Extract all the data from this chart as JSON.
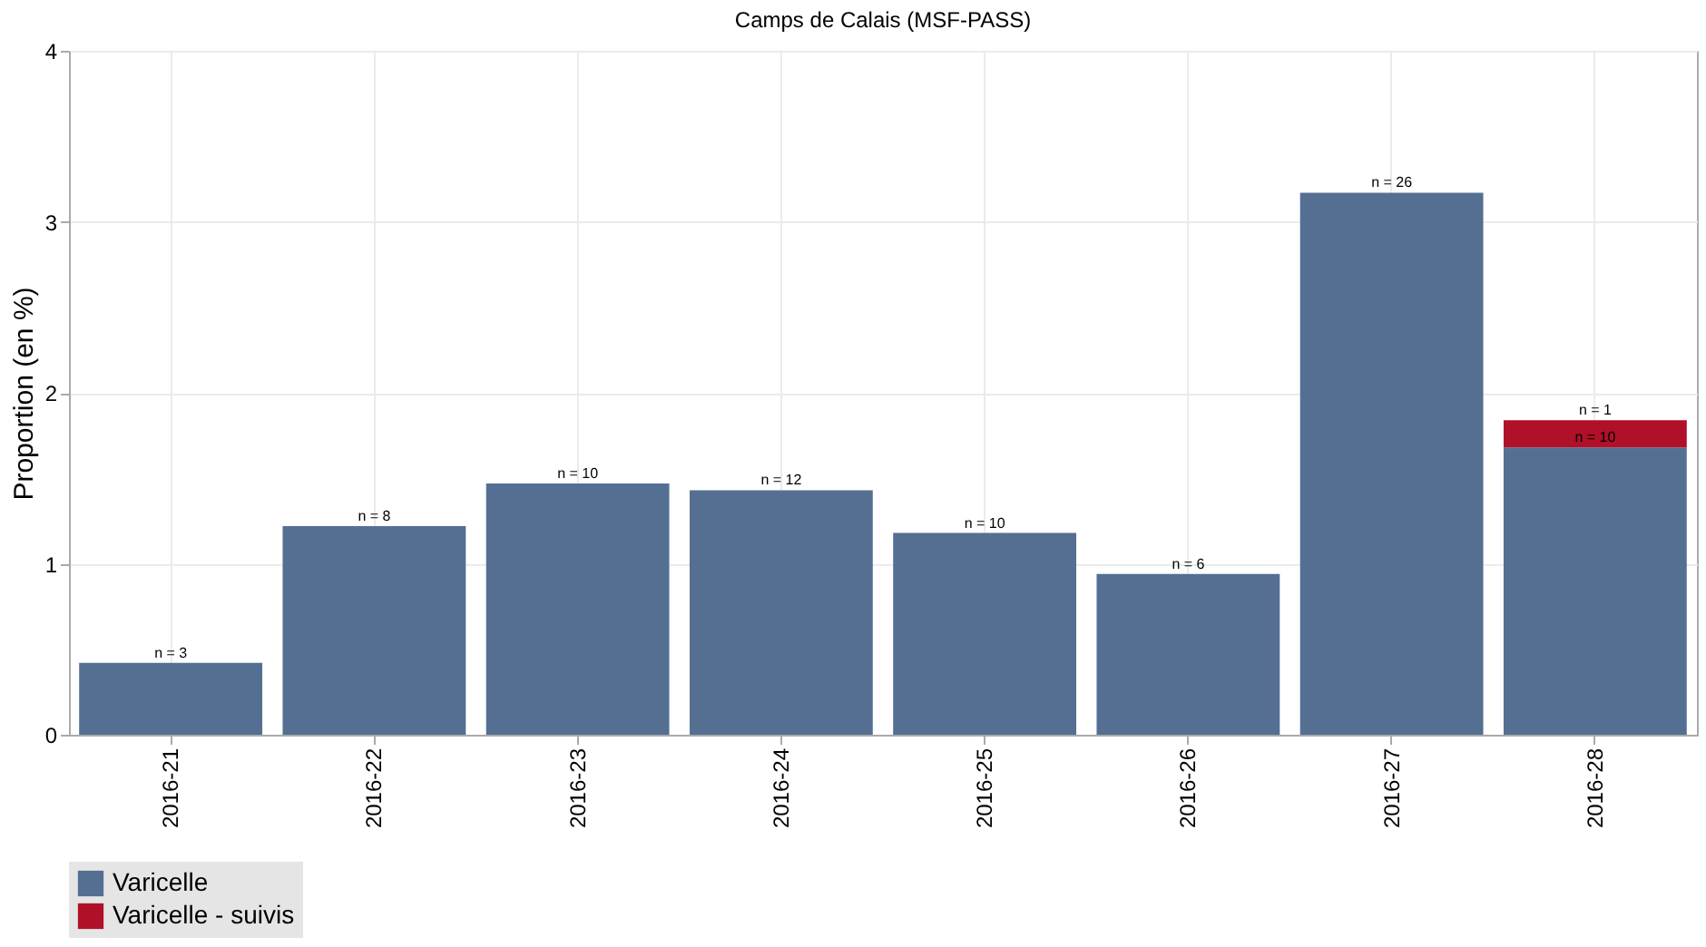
{
  "chart_data": {
    "type": "bar",
    "title": "Camps de Calais (MSF-PASS)",
    "ylabel": "Proportion (en %)",
    "categories": [
      "2016-21",
      "2016-22",
      "2016-23",
      "2016-24",
      "2016-25",
      "2016-26",
      "2016-27",
      "2016-28"
    ],
    "stacked": true,
    "series": [
      {
        "name": "Varicelle",
        "color": "#556f93",
        "values": [
          0.42,
          1.22,
          1.47,
          1.43,
          1.18,
          0.94,
          3.17,
          1.68
        ]
      },
      {
        "name": "Varicelle - suivis",
        "color": "#b01028",
        "values": [
          null,
          null,
          null,
          null,
          null,
          null,
          null,
          0.16
        ]
      }
    ],
    "annotations": [
      {
        "text": "n = 3",
        "x": "2016-21",
        "y": 0.42
      },
      {
        "text": "n = 8",
        "x": "2016-22",
        "y": 1.22
      },
      {
        "text": "n = 10",
        "x": "2016-23",
        "y": 1.47
      },
      {
        "text": "n = 12",
        "x": "2016-24",
        "y": 1.43
      },
      {
        "text": "n = 10",
        "x": "2016-25",
        "y": 1.18
      },
      {
        "text": "n = 6",
        "x": "2016-26",
        "y": 0.94
      },
      {
        "text": "n = 26",
        "x": "2016-27",
        "y": 3.17
      },
      {
        "text": "n = 10",
        "x": "2016-28",
        "y": 1.68
      },
      {
        "text": "n = 1",
        "x": "2016-28",
        "y": 1.84
      }
    ],
    "ylim": [
      0,
      4
    ],
    "yticks": [
      0,
      1,
      2,
      3,
      4
    ],
    "grid": true,
    "legend": "bottom"
  }
}
